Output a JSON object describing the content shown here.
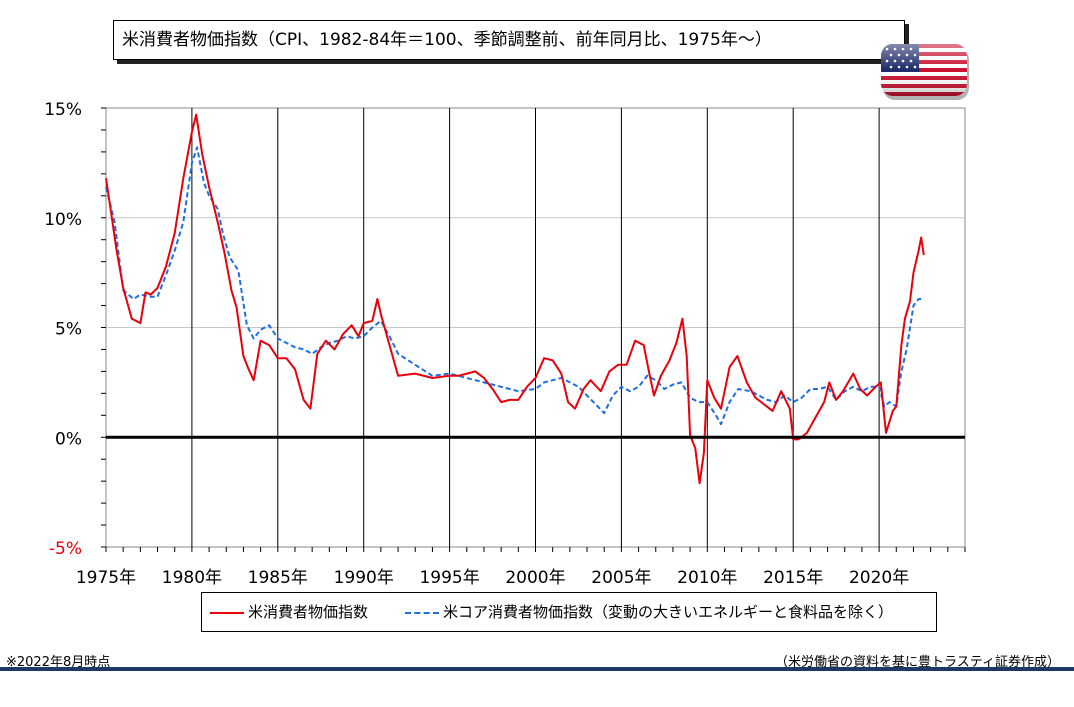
{
  "title": "米消費者物価指数（CPI、1982-84年＝100、季節調整前、前年同月比、1975年～）",
  "flag_icon": "us-flag-icon",
  "notes": {
    "left": "※2022年8月時点",
    "right": "（米労働省の資料を基に豊トラスティ証券作成）"
  },
  "chart_data": {
    "type": "line",
    "title": "米消費者物価指数（CPI、1982-84年＝100、季節調整前、前年同月比、1975年～）",
    "xlabel": "",
    "ylabel": "",
    "xlim": [
      1975.0,
      2025.0
    ],
    "ylim": [
      -5,
      15
    ],
    "y_ticks": [
      "15%",
      "10%",
      "5%",
      "0%",
      "-5%"
    ],
    "x_ticks": [
      "1975年",
      "1980年",
      "1985年",
      "1990年",
      "1995年",
      "2000年",
      "2005年",
      "2010年",
      "2015年",
      "2020年"
    ],
    "grid": true,
    "legend_position": "bottom",
    "colors": {
      "headline": "#e8000b",
      "core": "#1f6fe0",
      "zero_line": "#000000",
      "negative_tick": "#e8000b"
    },
    "series": [
      {
        "name": "米消費者物価指数",
        "style": "solid",
        "x": [
          1975.0,
          1975.3,
          1975.6,
          1976.0,
          1976.5,
          1977.0,
          1977.3,
          1977.6,
          1978.0,
          1978.5,
          1979.0,
          1979.5,
          1980.0,
          1980.25,
          1980.6,
          1981.0,
          1981.5,
          1981.9,
          1982.3,
          1982.6,
          1983.0,
          1983.3,
          1983.6,
          1984.0,
          1984.5,
          1985.0,
          1985.5,
          1986.0,
          1986.5,
          1986.9,
          1987.3,
          1987.8,
          1988.3,
          1988.8,
          1989.3,
          1989.7,
          1990.0,
          1990.5,
          1990.8,
          1991.0,
          1991.5,
          1992.0,
          1993.0,
          1994.0,
          1995.0,
          1995.5,
          1996.0,
          1996.5,
          1997.0,
          1997.5,
          1998.0,
          1998.5,
          1999.0,
          1999.5,
          2000.0,
          2000.5,
          2001.0,
          2001.5,
          2001.9,
          2002.3,
          2002.8,
          2003.2,
          2003.8,
          2004.3,
          2004.8,
          2005.3,
          2005.8,
          2006.3,
          2006.6,
          2006.9,
          2007.3,
          2007.8,
          2008.2,
          2008.55,
          2008.8,
          2009.0,
          2009.3,
          2009.55,
          2009.8,
          2010.0,
          2010.4,
          2010.8,
          2011.3,
          2011.75,
          2012.3,
          2012.8,
          2013.3,
          2013.8,
          2014.3,
          2014.8,
          2015.0,
          2015.3,
          2015.8,
          2016.3,
          2016.8,
          2017.1,
          2017.5,
          2017.9,
          2018.5,
          2018.9,
          2019.3,
          2019.8,
          2020.1,
          2020.4,
          2020.8,
          2021.0,
          2021.3,
          2021.5,
          2021.8,
          2022.0,
          2022.3,
          2022.45,
          2022.6
        ],
        "values": [
          11.8,
          10.2,
          8.6,
          6.8,
          5.4,
          5.2,
          6.6,
          6.5,
          6.8,
          7.8,
          9.3,
          11.8,
          13.9,
          14.7,
          12.9,
          11.4,
          9.8,
          8.4,
          6.7,
          5.9,
          3.7,
          3.1,
          2.6,
          4.4,
          4.2,
          3.6,
          3.6,
          3.1,
          1.7,
          1.3,
          3.8,
          4.4,
          4.0,
          4.7,
          5.1,
          4.6,
          5.2,
          5.3,
          6.3,
          5.6,
          4.2,
          2.8,
          2.9,
          2.7,
          2.8,
          2.8,
          2.9,
          3.0,
          2.7,
          2.2,
          1.6,
          1.7,
          1.7,
          2.3,
          2.7,
          3.6,
          3.5,
          2.9,
          1.6,
          1.3,
          2.2,
          2.6,
          2.1,
          3.0,
          3.3,
          3.3,
          4.4,
          4.2,
          3.0,
          1.9,
          2.8,
          3.5,
          4.3,
          5.4,
          3.7,
          0.1,
          -0.5,
          -2.1,
          -0.7,
          2.6,
          1.8,
          1.3,
          3.2,
          3.7,
          2.5,
          1.8,
          1.5,
          1.2,
          2.1,
          1.3,
          -0.1,
          -0.1,
          0.2,
          0.9,
          1.6,
          2.5,
          1.7,
          2.1,
          2.9,
          2.2,
          1.9,
          2.3,
          2.5,
          0.2,
          1.2,
          1.4,
          4.2,
          5.4,
          6.2,
          7.5,
          8.5,
          9.1,
          8.3
        ]
      },
      {
        "name": "米コア消費者物価指数（変動の大きいエネルギーと食料品を除く）",
        "style": "dashed",
        "x": [
          1975.0,
          1975.5,
          1976.0,
          1976.6,
          1977.0,
          1977.6,
          1978.0,
          1978.5,
          1979.0,
          1979.5,
          1980.0,
          1980.3,
          1980.7,
          1981.0,
          1981.5,
          1981.8,
          1982.2,
          1982.7,
          1983.2,
          1983.6,
          1984.0,
          1984.5,
          1985.0,
          1985.5,
          1986.0,
          1986.5,
          1987.0,
          1987.5,
          1988.0,
          1988.5,
          1989.0,
          1989.5,
          1990.0,
          1990.5,
          1991.0,
          1991.5,
          1992.0,
          1993.0,
          1994.0,
          1995.0,
          1996.0,
          1997.0,
          1998.0,
          1999.0,
          2000.0,
          2000.5,
          2001.0,
          2001.5,
          2002.0,
          2002.5,
          2003.0,
          2003.5,
          2004.0,
          2004.5,
          2005.0,
          2005.5,
          2006.0,
          2006.5,
          2007.0,
          2007.5,
          2008.0,
          2008.5,
          2009.0,
          2009.5,
          2010.0,
          2010.5,
          2010.8,
          2011.3,
          2011.8,
          2012.5,
          2013.0,
          2013.5,
          2014.0,
          2014.5,
          2015.0,
          2015.5,
          2016.0,
          2016.5,
          2017.0,
          2017.5,
          2018.0,
          2018.5,
          2019.0,
          2019.5,
          2020.0,
          2020.3,
          2020.6,
          2021.0,
          2021.3,
          2021.6,
          2022.0,
          2022.3,
          2022.6
        ],
        "values": [
          11.4,
          9.8,
          6.7,
          6.3,
          6.5,
          6.4,
          6.4,
          7.4,
          8.5,
          9.8,
          12.5,
          13.2,
          11.6,
          11.0,
          10.4,
          9.3,
          8.2,
          7.6,
          5.1,
          4.5,
          4.9,
          5.1,
          4.5,
          4.3,
          4.1,
          4.0,
          3.8,
          4.1,
          4.3,
          4.4,
          4.6,
          4.5,
          4.6,
          5.0,
          5.3,
          4.6,
          3.8,
          3.3,
          2.8,
          2.9,
          2.7,
          2.5,
          2.3,
          2.1,
          2.2,
          2.5,
          2.6,
          2.7,
          2.5,
          2.3,
          1.9,
          1.5,
          1.1,
          1.9,
          2.3,
          2.1,
          2.3,
          2.8,
          2.6,
          2.2,
          2.4,
          2.5,
          1.8,
          1.6,
          1.6,
          1.0,
          0.6,
          1.6,
          2.2,
          2.1,
          1.9,
          1.7,
          1.6,
          1.9,
          1.6,
          1.8,
          2.2,
          2.2,
          2.3,
          1.7,
          2.1,
          2.3,
          2.1,
          2.3,
          2.3,
          1.4,
          1.6,
          1.4,
          3.0,
          4.0,
          6.0,
          6.3,
          6.3
        ]
      }
    ]
  }
}
